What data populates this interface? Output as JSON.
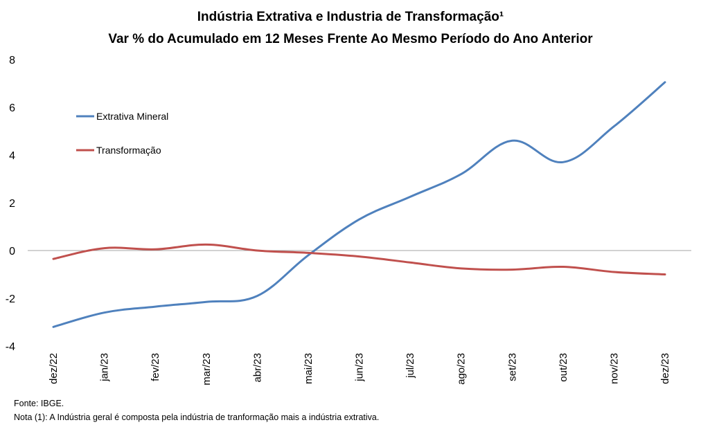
{
  "chart_data": {
    "type": "line",
    "title": "Indústria Extrativa e Industria de Transformação¹",
    "subtitle": "Var % do Acumulado em 12 Meses Frente Ao Mesmo Período do Ano Anterior",
    "xlabel": "",
    "ylabel": "",
    "categories": [
      "dez/22",
      "jan/23",
      "fev/23",
      "mar/23",
      "abr/23",
      "mai/23",
      "jun/23",
      "jul/23",
      "ago/23",
      "set/23",
      "out/23",
      "nov/23",
      "dez/23"
    ],
    "ylim": [
      -4,
      8
    ],
    "yticks": [
      "-4",
      "-2",
      "0",
      "2",
      "4",
      "6",
      "8"
    ],
    "grid": false,
    "legend_position": "top-left",
    "series": [
      {
        "name": "Extrativa Mineral",
        "color": "#4F81BD",
        "values": [
          -3.2,
          -2.6,
          -2.35,
          -2.15,
          -1.9,
          -0.2,
          1.3,
          2.25,
          3.2,
          4.6,
          3.7,
          5.2,
          7.05
        ]
      },
      {
        "name": "Transformação",
        "color": "#C0504D",
        "values": [
          -0.35,
          0.1,
          0.05,
          0.25,
          0.0,
          -0.1,
          -0.25,
          -0.5,
          -0.75,
          -0.8,
          -0.68,
          -0.9,
          -1.0
        ]
      }
    ]
  },
  "footer": {
    "source": "Fonte: IBGE.",
    "note": "Nota (1): A Indústria geral é composta pela indústria de tranformação mais a indústria extrativa."
  }
}
